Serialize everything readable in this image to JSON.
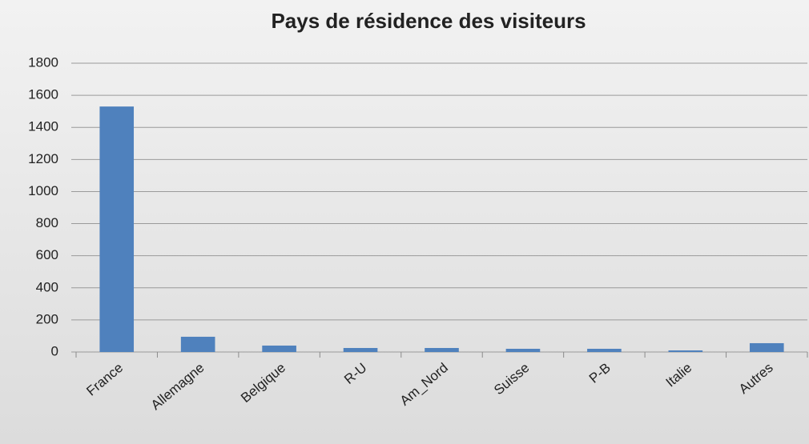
{
  "chart_data": {
    "type": "bar",
    "title": "Pays de résidence des visiteurs",
    "categories": [
      "France",
      "Allemagne",
      "Belgique",
      "R-U",
      "Am_Nord",
      "Suisse",
      "P-B",
      "Italie",
      "Autres"
    ],
    "values": [
      1530,
      95,
      40,
      25,
      25,
      20,
      20,
      10,
      55
    ],
    "color": "#4f81bd",
    "ylim": [
      0,
      1800
    ],
    "yticks": [
      0,
      200,
      400,
      600,
      800,
      1000,
      1200,
      1400,
      1600,
      1800
    ],
    "grid": true
  }
}
